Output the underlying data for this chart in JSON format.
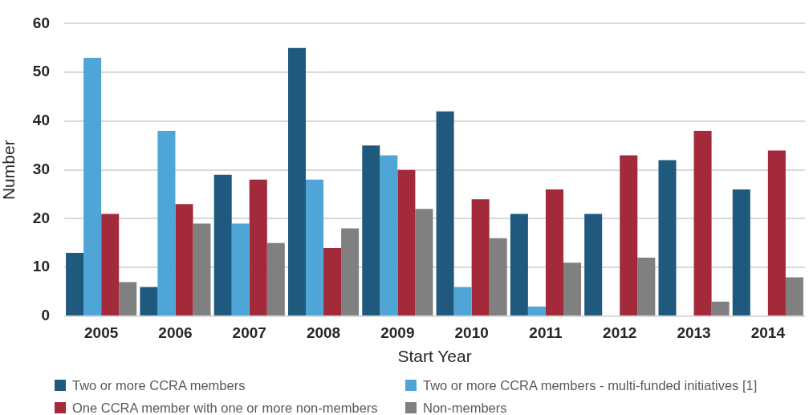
{
  "chart_data": {
    "type": "bar",
    "xlabel": "Start Year",
    "ylabel": "Number",
    "categories": [
      "2005",
      "2006",
      "2007",
      "2008",
      "2009",
      "2010",
      "2011",
      "2012",
      "2013",
      "2014"
    ],
    "series": [
      {
        "name": "Two or more CCRA members",
        "color": "#1f5a7e",
        "values": [
          13,
          6,
          29,
          55,
          35,
          42,
          21,
          21,
          32,
          26
        ]
      },
      {
        "name": "Two or more CCRA members - multi-funded initiatives [1]",
        "color": "#4fa5d6",
        "values": [
          53,
          38,
          19,
          28,
          33,
          6,
          2,
          null,
          null,
          null
        ]
      },
      {
        "name": "One CCRA member with one or more non-members",
        "color": "#a22a3a",
        "values": [
          21,
          23,
          28,
          14,
          30,
          24,
          26,
          33,
          38,
          34
        ]
      },
      {
        "name": "Non-members",
        "color": "#808080",
        "values": [
          7,
          19,
          15,
          18,
          22,
          16,
          11,
          12,
          3,
          8
        ]
      }
    ],
    "ylim": [
      0,
      60
    ],
    "yticks": [
      0,
      10,
      20,
      30,
      40,
      50,
      60
    ],
    "grid": "y",
    "legend": "bottom"
  }
}
